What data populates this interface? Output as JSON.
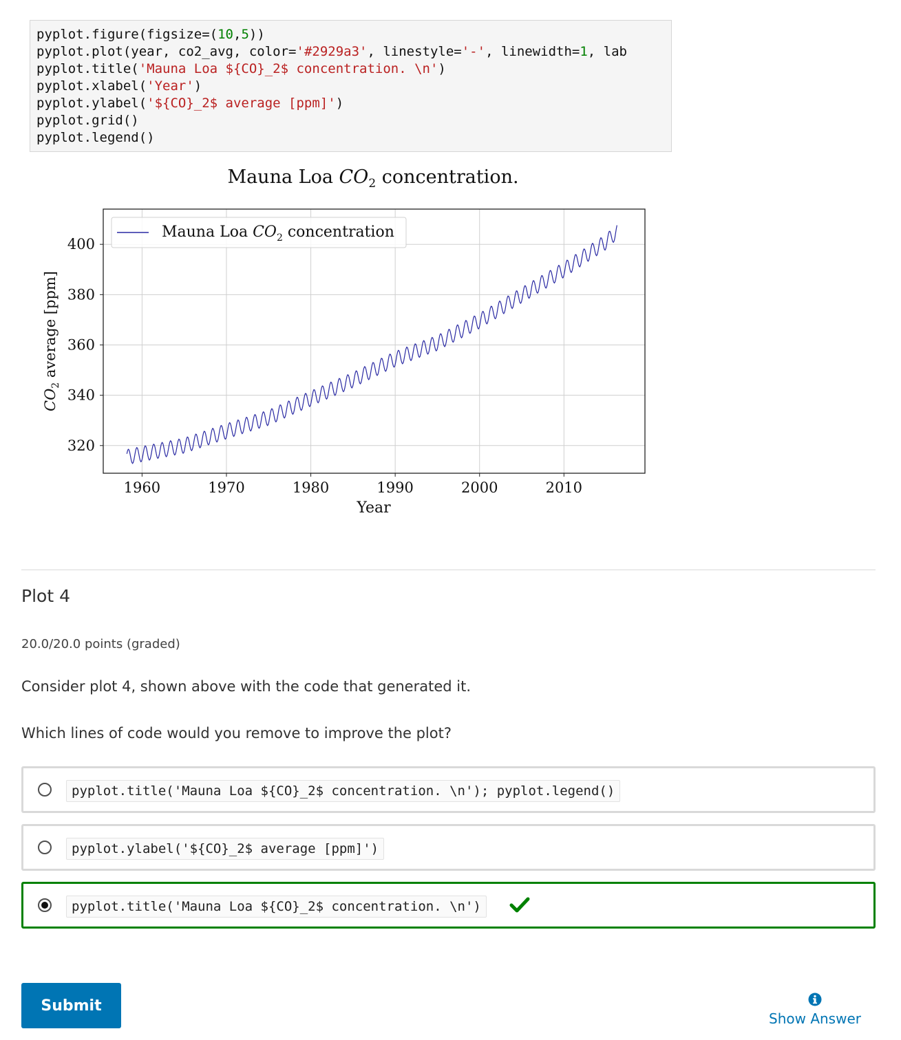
{
  "code_cell": {
    "lines": [
      [
        {
          "t": "pyplot.figure(figsize=("
        },
        {
          "t": "10",
          "c": "num"
        },
        {
          "t": ","
        },
        {
          "t": "5",
          "c": "num"
        },
        {
          "t": "))"
        }
      ],
      [
        {
          "t": "pyplot.plot(year, co2_avg, color="
        },
        {
          "t": "'#2929a3'",
          "c": "str"
        },
        {
          "t": ", linestyle="
        },
        {
          "t": "'-'",
          "c": "str"
        },
        {
          "t": ", linewidth="
        },
        {
          "t": "1",
          "c": "num"
        },
        {
          "t": ", lab"
        }
      ],
      [
        {
          "t": "pyplot.title("
        },
        {
          "t": "'Mauna Loa ${CO}_2$ concentration. \\n'",
          "c": "str"
        },
        {
          "t": ")"
        }
      ],
      [
        {
          "t": "pyplot.xlabel("
        },
        {
          "t": "'Year'",
          "c": "str"
        },
        {
          "t": ")"
        }
      ],
      [
        {
          "t": "pyplot.ylabel("
        },
        {
          "t": "'${CO}_2$ average [ppm]'",
          "c": "str"
        },
        {
          "t": ")"
        }
      ],
      [
        {
          "t": "pyplot.grid()"
        }
      ],
      [
        {
          "t": "pyplot.legend()"
        }
      ]
    ]
  },
  "chart_data": {
    "type": "line",
    "title_prefix": "Mauna Loa ",
    "title_math": "CO",
    "title_sub": "2",
    "title_suffix": " concentration.",
    "xlabel": "Year",
    "ylabel_math": "CO",
    "ylabel_sub": "2",
    "ylabel_suffix": " average [ppm]",
    "xlim": [
      1955.4,
      2019.6
    ],
    "ylim": [
      309,
      414
    ],
    "xticks": [
      1960,
      1970,
      1980,
      1990,
      2000,
      2010
    ],
    "yticks": [
      320,
      340,
      360,
      380,
      400
    ],
    "grid": true,
    "legend_position": "upper-left",
    "series": [
      {
        "name_prefix": "Mauna Loa ",
        "name_math": "CO",
        "name_sub": "2",
        "name_suffix": " concentration",
        "color": "#2929a3",
        "x_start": 1958.2,
        "x_end": 2016.3,
        "seasonal_amplitude": 3,
        "yearly_values": [
          {
            "year": 1958,
            "value": 315.3
          },
          {
            "year": 1965,
            "value": 320.0
          },
          {
            "year": 1970,
            "value": 325.7
          },
          {
            "year": 1975,
            "value": 331.1
          },
          {
            "year": 1980,
            "value": 338.7
          },
          {
            "year": 1985,
            "value": 346.1
          },
          {
            "year": 1990,
            "value": 354.4
          },
          {
            "year": 1995,
            "value": 360.8
          },
          {
            "year": 2000,
            "value": 369.6
          },
          {
            "year": 2005,
            "value": 379.8
          },
          {
            "year": 2010,
            "value": 389.9
          },
          {
            "year": 2015,
            "value": 401.0
          },
          {
            "year": 2016,
            "value": 404.2
          }
        ]
      }
    ]
  },
  "problem": {
    "title": "Plot 4",
    "points": "20.0/20.0 points (graded)",
    "prompt_1": "Consider plot 4, shown above with the code that generated it.",
    "prompt_2": "Which lines of code would you remove to improve the plot?",
    "choices": [
      {
        "label": "pyplot.title('Mauna Loa ${CO}_2$ concentration. \\n'); pyplot.legend()",
        "selected": false,
        "correct": false
      },
      {
        "label": "pyplot.ylabel('${CO}_2$ average [ppm]')",
        "selected": false,
        "correct": false
      },
      {
        "label": "pyplot.title('Mauna Loa ${CO}_2$ concentration. \\n')",
        "selected": true,
        "correct": true
      }
    ]
  },
  "actions": {
    "submit_label": "Submit",
    "show_answer_label": "Show Answer"
  },
  "colors": {
    "accent": "#0075b4",
    "correct": "#008100",
    "line": "#2929a3"
  }
}
